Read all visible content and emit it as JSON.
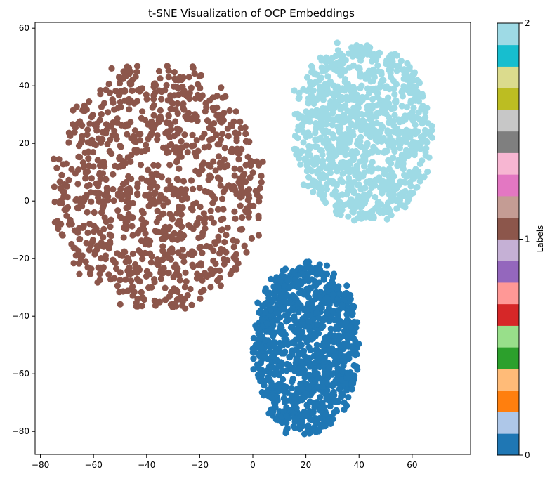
{
  "chart_data": {
    "type": "scatter",
    "title": "t-SNE Visualization of OCP Embeddings",
    "xlabel": "",
    "ylabel": "",
    "xlim": [
      -82,
      82
    ],
    "ylim": [
      -88,
      62
    ],
    "x_ticks": [
      -80,
      -60,
      -40,
      -20,
      0,
      20,
      40,
      60
    ],
    "y_ticks": [
      -80,
      -60,
      -40,
      -20,
      0,
      20,
      40,
      60
    ],
    "grid": false,
    "colormap": "tab20",
    "clusters": [
      {
        "label": 0,
        "color": "#1f77b4",
        "center": [
          20,
          -50
        ],
        "x_range": [
          0,
          40
        ],
        "y_range": [
          -81,
          -21
        ],
        "approx_points": 1000
      },
      {
        "label": 1,
        "color": "#8c564b",
        "center": [
          -38,
          3
        ],
        "x_range": [
          -75,
          4
        ],
        "y_range": [
          -38,
          48
        ],
        "approx_points": 1000
      },
      {
        "label": 2,
        "color": "#9edae5",
        "center": [
          37,
          24
        ],
        "x_range": [
          15,
          68
        ],
        "y_range": [
          -7,
          55
        ],
        "approx_points": 1000
      }
    ],
    "colorbar": {
      "label": "Labels",
      "ticks": [
        0,
        1,
        2
      ],
      "tick_labels": [
        "0",
        "1",
        "2"
      ],
      "range": [
        0,
        2
      ],
      "colors": [
        "#1f77b4",
        "#aec7e8",
        "#ff7f0e",
        "#ffbb78",
        "#2ca02c",
        "#98df8a",
        "#d62728",
        "#ff9896",
        "#9467bd",
        "#c5b0d5",
        "#8c564b",
        "#c49c94",
        "#e377c2",
        "#f7b6d2",
        "#7f7f7f",
        "#c7c7c7",
        "#bcbd22",
        "#dbdb8d",
        "#17becf",
        "#9edae5"
      ]
    }
  }
}
